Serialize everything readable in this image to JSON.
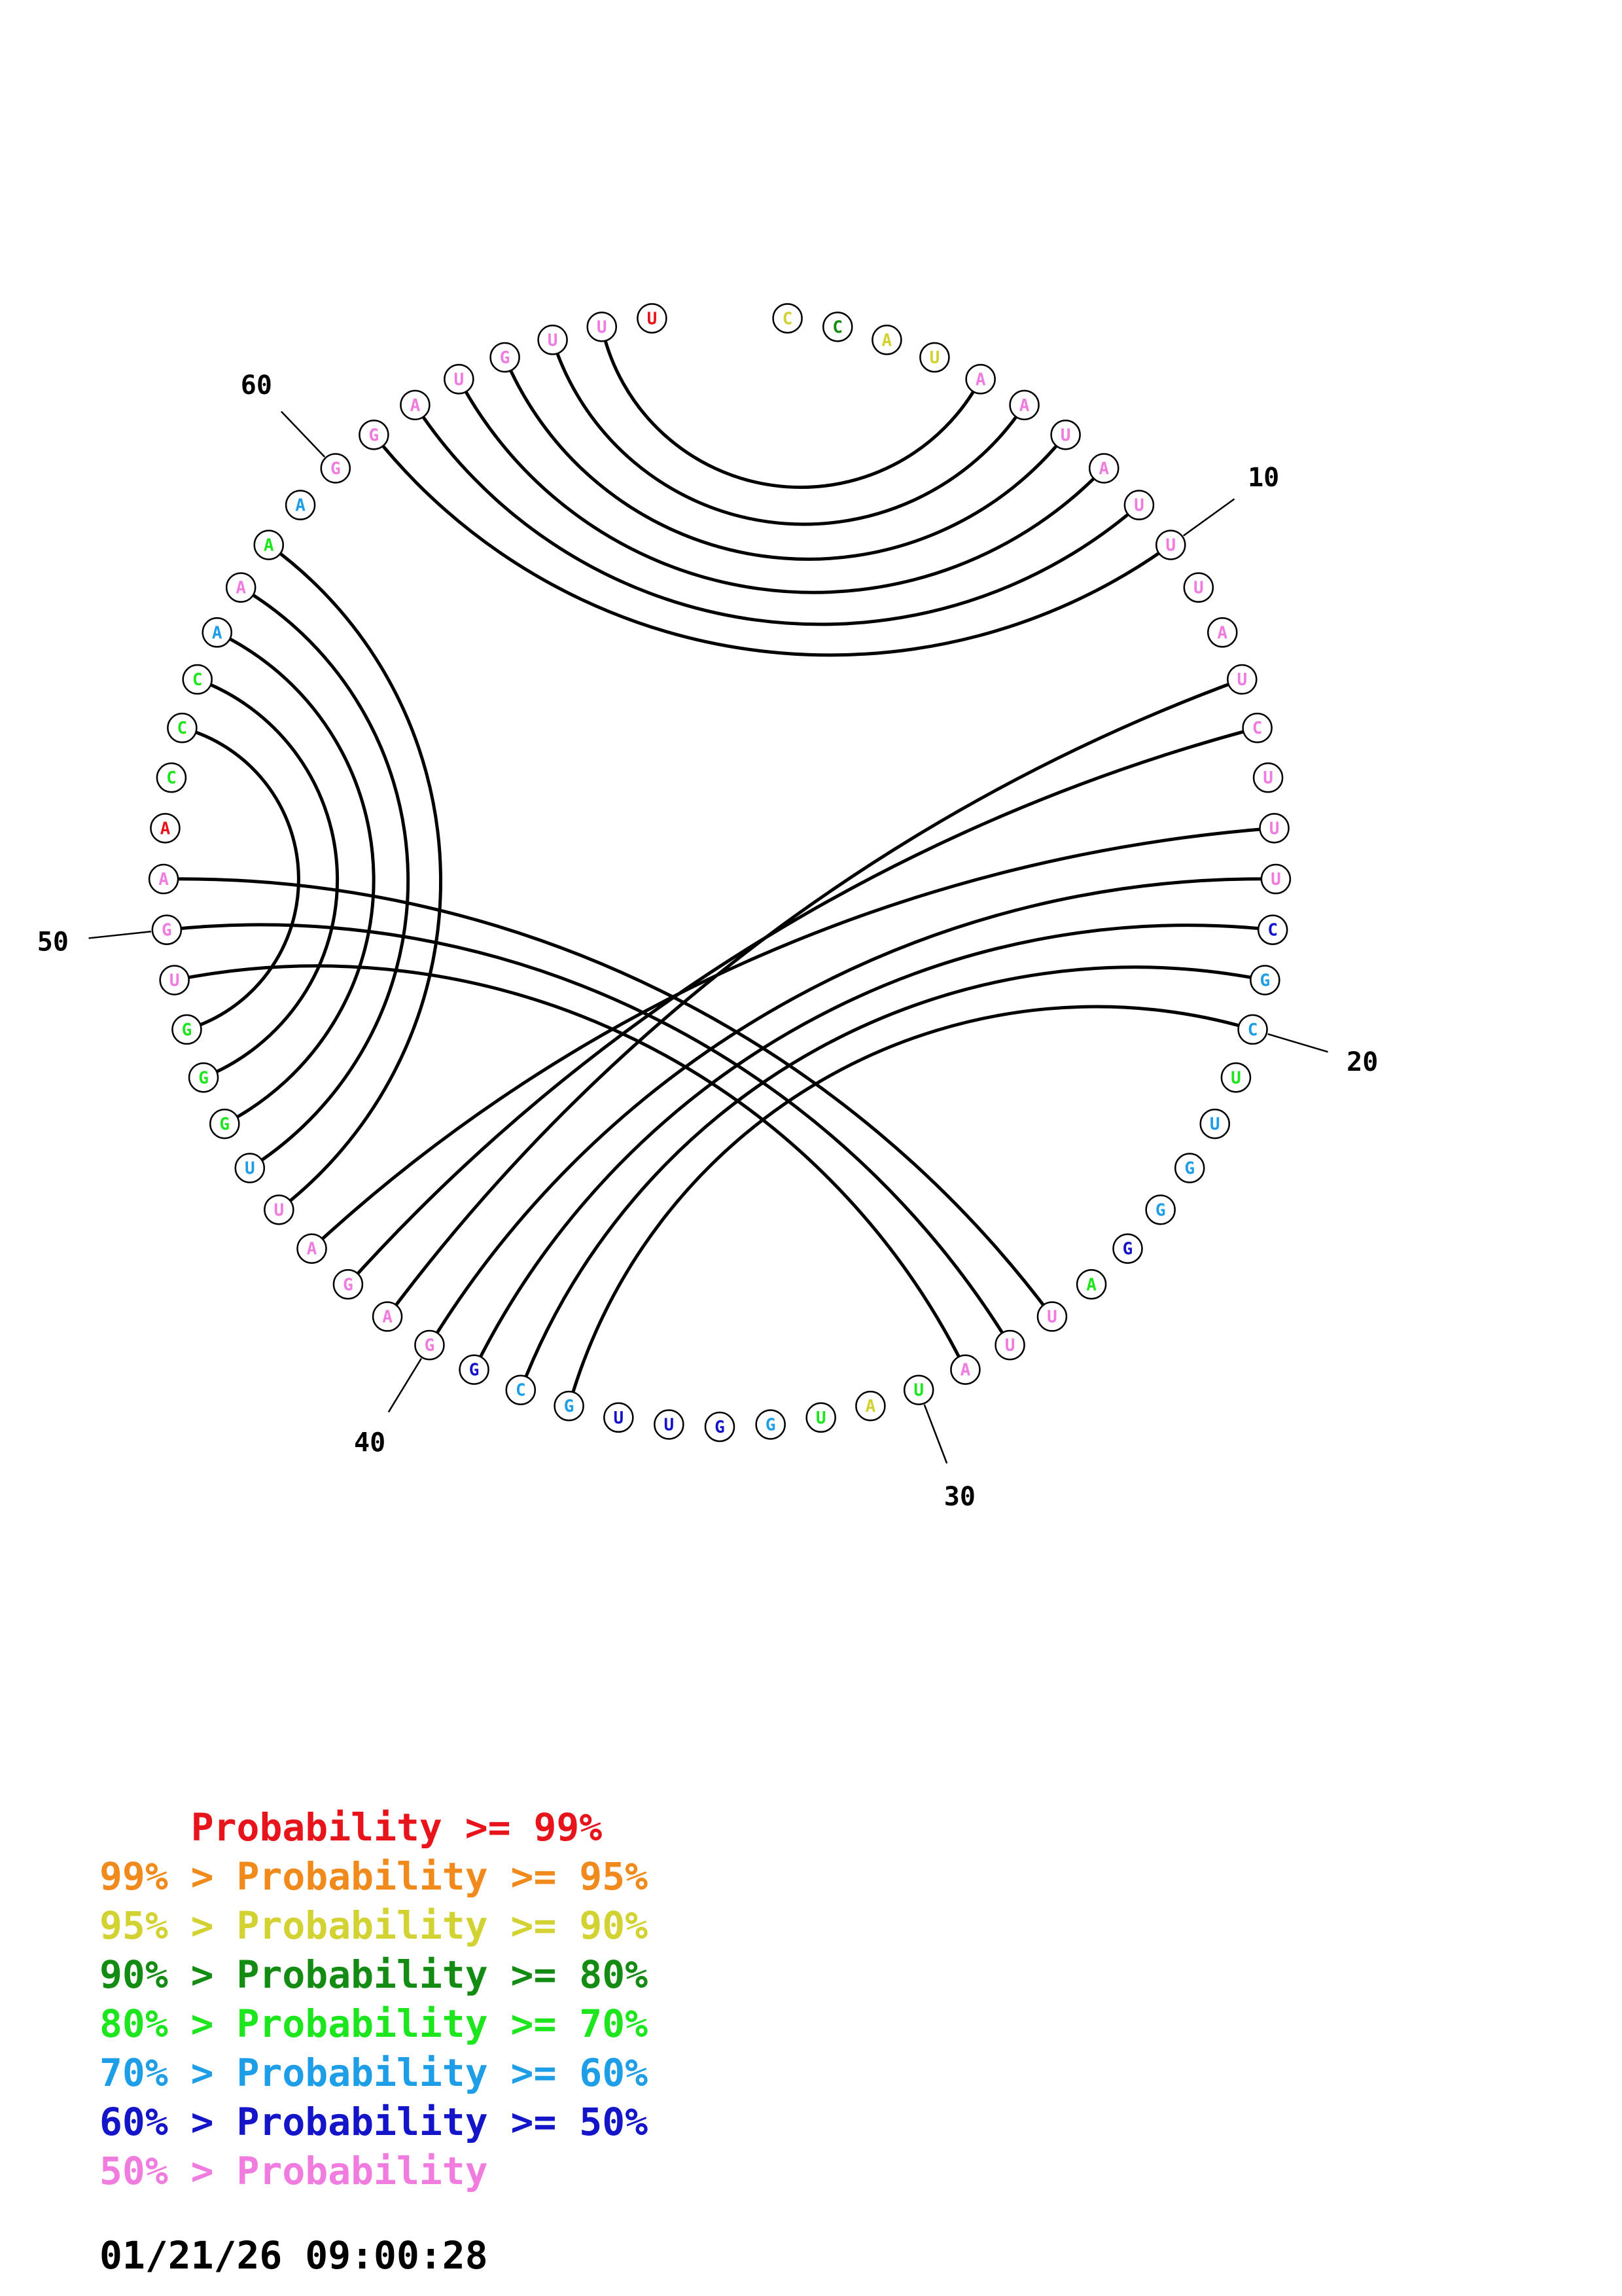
{
  "colors": {
    "p99": "#e8141c",
    "p95": "#f08a1c",
    "p90": "#d2d232",
    "p80": "#148c14",
    "p70": "#1ee61e",
    "p60": "#1e9ee6",
    "p50": "#1414c8",
    "plow": "#f07ce0"
  },
  "sequence": [
    {
      "n": 1,
      "b": "C",
      "c": "p90"
    },
    {
      "n": 2,
      "b": "C",
      "c": "p80"
    },
    {
      "n": 3,
      "b": "A",
      "c": "p90"
    },
    {
      "n": 4,
      "b": "U",
      "c": "p90"
    },
    {
      "n": 5,
      "b": "A",
      "c": "plow"
    },
    {
      "n": 6,
      "b": "A",
      "c": "plow"
    },
    {
      "n": 7,
      "b": "U",
      "c": "plow"
    },
    {
      "n": 8,
      "b": "A",
      "c": "plow"
    },
    {
      "n": 9,
      "b": "U",
      "c": "plow"
    },
    {
      "n": 10,
      "b": "U",
      "c": "plow"
    },
    {
      "n": 11,
      "b": "U",
      "c": "plow"
    },
    {
      "n": 12,
      "b": "A",
      "c": "plow"
    },
    {
      "n": 13,
      "b": "U",
      "c": "plow"
    },
    {
      "n": 14,
      "b": "C",
      "c": "plow"
    },
    {
      "n": 15,
      "b": "U",
      "c": "plow"
    },
    {
      "n": 16,
      "b": "U",
      "c": "plow"
    },
    {
      "n": 17,
      "b": "U",
      "c": "plow"
    },
    {
      "n": 18,
      "b": "C",
      "c": "p50"
    },
    {
      "n": 19,
      "b": "G",
      "c": "p60"
    },
    {
      "n": 20,
      "b": "C",
      "c": "p60"
    },
    {
      "n": 21,
      "b": "U",
      "c": "p70"
    },
    {
      "n": 22,
      "b": "U",
      "c": "p60"
    },
    {
      "n": 23,
      "b": "G",
      "c": "p60"
    },
    {
      "n": 24,
      "b": "G",
      "c": "p60"
    },
    {
      "n": 25,
      "b": "G",
      "c": "p50"
    },
    {
      "n": 26,
      "b": "A",
      "c": "p70"
    },
    {
      "n": 27,
      "b": "U",
      "c": "plow"
    },
    {
      "n": 28,
      "b": "U",
      "c": "plow"
    },
    {
      "n": 29,
      "b": "A",
      "c": "plow"
    },
    {
      "n": 30,
      "b": "U",
      "c": "p70"
    },
    {
      "n": 31,
      "b": "A",
      "c": "p90"
    },
    {
      "n": 32,
      "b": "U",
      "c": "p70"
    },
    {
      "n": 33,
      "b": "G",
      "c": "p60"
    },
    {
      "n": 34,
      "b": "G",
      "c": "p50"
    },
    {
      "n": 35,
      "b": "U",
      "c": "p50"
    },
    {
      "n": 36,
      "b": "U",
      "c": "p50"
    },
    {
      "n": 37,
      "b": "G",
      "c": "p60"
    },
    {
      "n": 38,
      "b": "C",
      "c": "p60"
    },
    {
      "n": 39,
      "b": "G",
      "c": "p50"
    },
    {
      "n": 40,
      "b": "G",
      "c": "plow"
    },
    {
      "n": 41,
      "b": "A",
      "c": "plow"
    },
    {
      "n": 42,
      "b": "G",
      "c": "plow"
    },
    {
      "n": 43,
      "b": "A",
      "c": "plow"
    },
    {
      "n": 44,
      "b": "U",
      "c": "plow"
    },
    {
      "n": 45,
      "b": "U",
      "c": "p60"
    },
    {
      "n": 46,
      "b": "G",
      "c": "p70"
    },
    {
      "n": 47,
      "b": "G",
      "c": "p70"
    },
    {
      "n": 48,
      "b": "G",
      "c": "p70"
    },
    {
      "n": 49,
      "b": "U",
      "c": "plow"
    },
    {
      "n": 50,
      "b": "G",
      "c": "plow"
    },
    {
      "n": 51,
      "b": "A",
      "c": "plow"
    },
    {
      "n": 52,
      "b": "A",
      "c": "p99"
    },
    {
      "n": 53,
      "b": "C",
      "c": "p70"
    },
    {
      "n": 54,
      "b": "C",
      "c": "p70"
    },
    {
      "n": 55,
      "b": "C",
      "c": "p70"
    },
    {
      "n": 56,
      "b": "A",
      "c": "p60"
    },
    {
      "n": 57,
      "b": "A",
      "c": "plow"
    },
    {
      "n": 58,
      "b": "A",
      "c": "p70"
    },
    {
      "n": 59,
      "b": "A",
      "c": "p60"
    },
    {
      "n": 60,
      "b": "G",
      "c": "plow"
    },
    {
      "n": 61,
      "b": "G",
      "c": "plow"
    },
    {
      "n": 62,
      "b": "A",
      "c": "plow"
    },
    {
      "n": 63,
      "b": "U",
      "c": "plow"
    },
    {
      "n": 64,
      "b": "G",
      "c": "plow"
    },
    {
      "n": 65,
      "b": "U",
      "c": "plow"
    },
    {
      "n": 66,
      "b": "U",
      "c": "plow"
    },
    {
      "n": 67,
      "b": "U",
      "c": "p99"
    }
  ],
  "pairs": [
    [
      5,
      66
    ],
    [
      6,
      65
    ],
    [
      7,
      64
    ],
    [
      8,
      63
    ],
    [
      9,
      62
    ],
    [
      10,
      61
    ],
    [
      13,
      41
    ],
    [
      14,
      42
    ],
    [
      16,
      43
    ],
    [
      17,
      40
    ],
    [
      18,
      39
    ],
    [
      19,
      38
    ],
    [
      20,
      37
    ],
    [
      27,
      51
    ],
    [
      28,
      50
    ],
    [
      29,
      49
    ],
    [
      44,
      58
    ],
    [
      45,
      57
    ],
    [
      46,
      56
    ],
    [
      47,
      55
    ],
    [
      48,
      54
    ]
  ],
  "index_labels": [
    {
      "n": 10,
      "text": "10"
    },
    {
      "n": 20,
      "text": "20"
    },
    {
      "n": 30,
      "text": "30"
    },
    {
      "n": 40,
      "text": "40"
    },
    {
      "n": 50,
      "text": "50"
    },
    {
      "n": 60,
      "text": "60"
    }
  ],
  "legend": [
    {
      "prefix": "    ",
      "text": "Probability >= 99%",
      "color": "p99"
    },
    {
      "prefix": "99% > ",
      "text": "Probability >= 95%",
      "color": "p95"
    },
    {
      "prefix": "95% > ",
      "text": "Probability >= 90%",
      "color": "p90"
    },
    {
      "prefix": "90% > ",
      "text": "Probability >= 80%",
      "color": "p80"
    },
    {
      "prefix": "80% > ",
      "text": "Probability >= 70%",
      "color": "p70"
    },
    {
      "prefix": "70% > ",
      "text": "Probability >= 60%",
      "color": "p60"
    },
    {
      "prefix": "60% > ",
      "text": "Probability >= 50%",
      "color": "p50"
    },
    {
      "prefix": "50% > ",
      "text": "Probability",
      "color": "plow"
    }
  ],
  "timestamp": "01/21/26 09:00:28"
}
